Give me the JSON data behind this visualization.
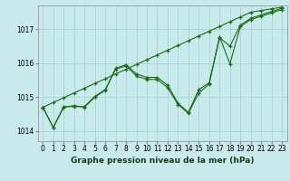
{
  "xlabel": "Graphe pression niveau de la mer (hPa)",
  "bg_color": "#c8eaea",
  "grid_color": "#aad4d4",
  "line_color": "#1a6b1a",
  "ylim": [
    1013.7,
    1017.7
  ],
  "yticks": [
    1014,
    1015,
    1016,
    1017
  ],
  "xlim": [
    -0.5,
    23.5
  ],
  "xticks": [
    0,
    1,
    2,
    3,
    4,
    5,
    6,
    7,
    8,
    9,
    10,
    11,
    12,
    13,
    14,
    15,
    16,
    17,
    18,
    19,
    20,
    21,
    22,
    23
  ],
  "series1": [
    1014.7,
    1014.1,
    1014.7,
    1014.75,
    1014.7,
    1015.0,
    1015.2,
    1015.85,
    1015.95,
    1015.68,
    1015.58,
    1015.58,
    1015.35,
    1014.82,
    1014.55,
    1015.22,
    1015.42,
    1016.75,
    1016.5,
    1017.12,
    1017.32,
    1017.42,
    1017.52,
    1017.62
  ],
  "series2": [
    1014.7,
    1014.1,
    1014.72,
    1014.72,
    1014.72,
    1015.02,
    1015.22,
    1015.82,
    1015.92,
    1015.62,
    1015.52,
    1015.52,
    1015.28,
    1014.78,
    1014.52,
    1015.12,
    1015.38,
    1016.78,
    1015.98,
    1017.08,
    1017.28,
    1017.38,
    1017.48,
    1017.58
  ],
  "series_straight": [
    1014.7,
    1014.84,
    1014.98,
    1015.12,
    1015.26,
    1015.4,
    1015.54,
    1015.68,
    1015.82,
    1015.96,
    1016.1,
    1016.24,
    1016.38,
    1016.52,
    1016.66,
    1016.8,
    1016.94,
    1017.08,
    1017.22,
    1017.36,
    1017.5,
    1017.55,
    1017.6,
    1017.65
  ]
}
